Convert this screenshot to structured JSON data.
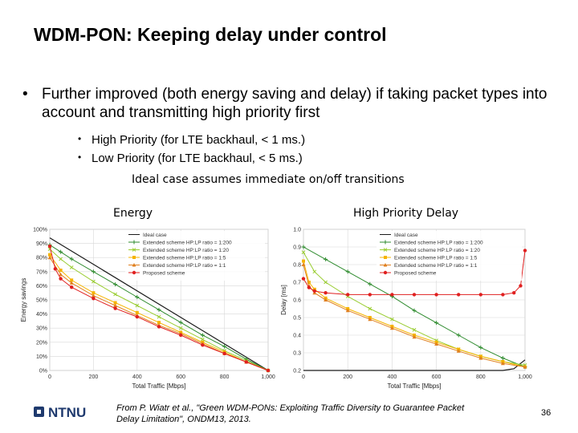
{
  "title": "WDM-PON: Keeping delay under control",
  "bullet": "Further improved (both energy saving and delay) if taking packet types into account and transmitting high priority first",
  "subbullets": [
    "High Priority (for LTE backhaul, < 1 ms.)",
    "Low Priority (for LTE backhaul, < 5 ms.)"
  ],
  "note": "Ideal case assumes immediate on/off transitions",
  "labels": {
    "energy": "Energy",
    "delay": "High Priority Delay"
  },
  "legend": [
    "Ideal case",
    "Extended scheme HP:LP ratio = 1:200",
    "Extended scheme HP:LP ratio = 1:20",
    "Extended scheme HP:LP ratio = 1:5",
    "Extended scheme HP:LP ratio = 1:1",
    "Proposed scheme"
  ],
  "series_colors": [
    "#1a1a1a",
    "#2e8b2e",
    "#9acd32",
    "#f5b400",
    "#e08020",
    "#e02020"
  ],
  "chart_data": [
    {
      "type": "line",
      "xlabel": "Total Traffic [Mbps]",
      "ylabel": "Energy savings",
      "xlim": [
        0,
        1000
      ],
      "ylim": [
        0,
        100
      ],
      "xticks": [
        "0",
        "200",
        "400",
        "600",
        "800",
        "1,000"
      ],
      "yticks": [
        "0%",
        "10%",
        "20%",
        "30%",
        "40%",
        "50%",
        "60%",
        "70%",
        "80%",
        "90%",
        "100%"
      ],
      "grid": true,
      "legend_position": "top-right",
      "series": [
        {
          "name": "Ideal case",
          "x": [
            0,
            1000
          ],
          "y": [
            94,
            0
          ]
        },
        {
          "name": "Extended scheme HP:LP ratio = 1:200",
          "x": [
            0,
            50,
            100,
            200,
            300,
            400,
            500,
            600,
            700,
            800,
            900,
            1000
          ],
          "y": [
            89,
            84,
            79,
            70,
            61,
            52,
            43,
            34,
            25,
            17,
            8,
            0
          ]
        },
        {
          "name": "Extended scheme HP:LP ratio = 1:20",
          "x": [
            0,
            50,
            100,
            200,
            300,
            400,
            500,
            600,
            700,
            800,
            900,
            1000
          ],
          "y": [
            86,
            79,
            73,
            63,
            54,
            46,
            38,
            30,
            22,
            14,
            7,
            0
          ]
        },
        {
          "name": "Extended scheme HP:LP ratio = 1:5",
          "x": [
            0,
            50,
            100,
            200,
            300,
            400,
            500,
            600,
            700,
            800,
            900,
            1000
          ],
          "y": [
            82,
            71,
            64,
            55,
            48,
            41,
            34,
            27,
            20,
            13,
            6,
            0
          ]
        },
        {
          "name": "Extended scheme HP:LP ratio = 1:1",
          "x": [
            0,
            50,
            100,
            200,
            300,
            400,
            500,
            600,
            700,
            800,
            900,
            1000
          ],
          "y": [
            80,
            68,
            62,
            53,
            46,
            39,
            32,
            26,
            19,
            12,
            6,
            0
          ]
        },
        {
          "name": "Proposed scheme",
          "x": [
            0,
            25,
            50,
            100,
            200,
            300,
            400,
            500,
            600,
            700,
            800,
            900,
            1000
          ],
          "y": [
            88,
            72,
            65,
            59,
            51,
            44,
            38,
            31,
            25,
            18,
            12,
            6,
            0
          ]
        }
      ]
    },
    {
      "type": "line",
      "xlabel": "Total Traffic [Mbps]",
      "ylabel": "Delay [ms]",
      "xlim": [
        0,
        1000
      ],
      "ylim": [
        0.2,
        1.0
      ],
      "xticks": [
        "0",
        "200",
        "400",
        "600",
        "800",
        "1,000"
      ],
      "yticks": [
        "0.2",
        "0.3",
        "0.4",
        "0.5",
        "0.6",
        "0.7",
        "0.8",
        "0.9",
        "1.0"
      ],
      "grid": true,
      "legend_position": "top-right",
      "series": [
        {
          "name": "Ideal case",
          "x": [
            0,
            100,
            200,
            300,
            400,
            500,
            600,
            700,
            800,
            900,
            950,
            1000
          ],
          "y": [
            0.2,
            0.2,
            0.2,
            0.2,
            0.2,
            0.2,
            0.2,
            0.2,
            0.2,
            0.2,
            0.21,
            0.26
          ]
        },
        {
          "name": "Extended scheme HP:LP ratio = 1:200",
          "x": [
            0,
            100,
            200,
            300,
            400,
            500,
            600,
            700,
            800,
            900,
            1000
          ],
          "y": [
            0.9,
            0.83,
            0.76,
            0.69,
            0.62,
            0.54,
            0.47,
            0.4,
            0.33,
            0.27,
            0.22
          ]
        },
        {
          "name": "Extended scheme HP:LP ratio = 1:20",
          "x": [
            0,
            50,
            100,
            200,
            300,
            400,
            500,
            600,
            700,
            800,
            900,
            1000
          ],
          "y": [
            0.87,
            0.76,
            0.7,
            0.62,
            0.55,
            0.49,
            0.43,
            0.37,
            0.32,
            0.28,
            0.25,
            0.23
          ]
        },
        {
          "name": "Extended scheme HP:LP ratio = 1:5",
          "x": [
            0,
            25,
            50,
            100,
            200,
            300,
            400,
            500,
            600,
            700,
            800,
            900,
            1000
          ],
          "y": [
            0.82,
            0.7,
            0.66,
            0.61,
            0.55,
            0.5,
            0.45,
            0.4,
            0.36,
            0.32,
            0.28,
            0.25,
            0.22
          ]
        },
        {
          "name": "Extended scheme HP:LP ratio = 1:1",
          "x": [
            0,
            25,
            50,
            100,
            200,
            300,
            400,
            500,
            600,
            700,
            800,
            900,
            1000
          ],
          "y": [
            0.8,
            0.68,
            0.64,
            0.6,
            0.54,
            0.49,
            0.44,
            0.39,
            0.35,
            0.31,
            0.27,
            0.24,
            0.22
          ]
        },
        {
          "name": "Proposed scheme",
          "x": [
            0,
            25,
            50,
            100,
            200,
            300,
            400,
            500,
            600,
            700,
            800,
            900,
            950,
            980,
            1000
          ],
          "y": [
            0.72,
            0.67,
            0.65,
            0.64,
            0.63,
            0.63,
            0.63,
            0.63,
            0.63,
            0.63,
            0.63,
            0.63,
            0.64,
            0.68,
            0.88
          ]
        }
      ]
    }
  ],
  "logo": {
    "text": "NTNU",
    "color": "#1f3a6e"
  },
  "citation": "From P. Wiatr et al., \"Green WDM-PONs: Exploiting Traffic Diversity to Guarantee Packet Delay Limitation\", ONDM13, 2013.",
  "page_number": "36"
}
